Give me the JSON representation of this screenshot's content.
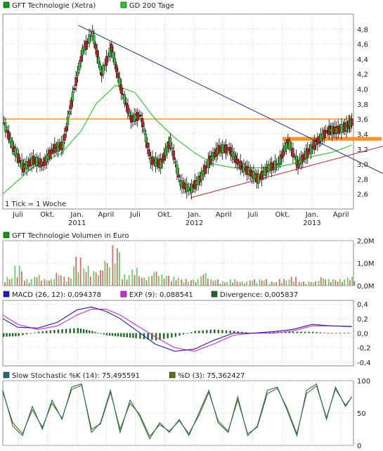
{
  "chart_data": [
    {
      "type": "candlestick",
      "legend": [
        {
          "label": "GFT Technologie (Xetra)",
          "color": "#00a000"
        },
        {
          "label": "GD 200 Tage",
          "color": "#22cc22"
        }
      ],
      "note": "1 Tick = 1 Woche",
      "xlim": [
        "2010-05-15",
        "2013-05-10"
      ],
      "ylim": [
        2.4,
        5.0
      ],
      "y_ticks": [
        "2,6",
        "2,8",
        "3,0",
        "3,2",
        "3,4",
        "3,6",
        "3,8",
        "4,0",
        "4,2",
        "4,4",
        "4,6",
        "4,8"
      ],
      "x_ticks": [
        "Juli",
        "Okt.",
        "Jan.",
        "April",
        "Juli",
        "Okt.",
        "Jan.",
        "April",
        "Juli",
        "Okt.",
        "Jan.",
        "April"
      ],
      "year_labels": [
        "2011",
        "2012",
        "2013"
      ],
      "price": {
        "dates": [
          "2010-05-15",
          "2010-06-15",
          "2010-07-15",
          "2010-08-15",
          "2010-09-15",
          "2010-10-15",
          "2010-11-15",
          "2010-12-15",
          "2011-01-15",
          "2011-02-15",
          "2011-03-15",
          "2011-04-15",
          "2011-05-15",
          "2011-06-15",
          "2011-07-15",
          "2011-08-15",
          "2011-09-15",
          "2011-10-15",
          "2011-11-15",
          "2011-12-15",
          "2012-01-15",
          "2012-02-15",
          "2012-03-15",
          "2012-04-15",
          "2012-05-15",
          "2012-06-15",
          "2012-07-15",
          "2012-08-15",
          "2012-09-15",
          "2012-10-15",
          "2012-11-15",
          "2012-12-15",
          "2013-01-15",
          "2013-02-15",
          "2013-03-15",
          "2013-04-15",
          "2013-05-05"
        ],
        "values": [
          3.55,
          3.2,
          2.95,
          3.05,
          3.0,
          3.2,
          3.25,
          3.9,
          4.5,
          4.75,
          4.2,
          4.55,
          4.0,
          3.6,
          3.65,
          3.05,
          3.0,
          3.3,
          2.75,
          2.65,
          2.8,
          3.05,
          3.2,
          3.2,
          3.0,
          2.9,
          2.8,
          2.95,
          3.0,
          3.3,
          3.0,
          3.15,
          3.3,
          3.45,
          3.45,
          3.5,
          3.57
        ]
      },
      "gd200": {
        "dates": [
          "2010-05-15",
          "2010-08-15",
          "2010-11-15",
          "2011-01-15",
          "2011-03-01",
          "2011-05-01",
          "2011-07-01",
          "2011-09-01",
          "2011-11-01",
          "2012-01-01",
          "2012-03-01",
          "2012-05-01",
          "2012-07-01",
          "2012-09-01",
          "2012-11-01",
          "2013-01-01",
          "2013-03-01",
          "2013-05-05"
        ],
        "values": [
          2.6,
          2.95,
          3.15,
          3.45,
          3.8,
          4.05,
          3.95,
          3.6,
          3.35,
          3.15,
          3.0,
          2.95,
          2.95,
          2.95,
          3.0,
          3.1,
          3.15,
          3.25
        ]
      },
      "trend_lines": [
        {
          "color": "#2030a0",
          "from": [
            "2011-01-05",
            4.85
          ],
          "to": [
            "2013-05-25",
            2.85
          ]
        },
        {
          "color": "#cc2020",
          "from": [
            "2011-12-20",
            2.55
          ],
          "to": [
            "2013-05-25",
            3.25
          ]
        }
      ],
      "horizontal_line": {
        "value": 3.6,
        "color": "#ff7f00"
      },
      "marked_zone": {
        "from_date": "2012-10-01",
        "low": 3.31,
        "high": 3.36,
        "color": "#ff8000"
      }
    },
    {
      "type": "bar",
      "legend": [
        {
          "label": "GFT Technologie Volumen in Euro",
          "color": "#00a000"
        }
      ],
      "y_ticks": [
        "0,0M",
        "1,0M",
        "2,0M"
      ],
      "ylim": [
        0,
        2.0
      ],
      "x": [
        "2010-05-20",
        "2010-06-20",
        "2010-07-20",
        "2010-08-20",
        "2010-09-20",
        "2010-10-20",
        "2010-11-20",
        "2010-12-20",
        "2011-01-20",
        "2011-02-20",
        "2011-03-20",
        "2011-04-20",
        "2011-05-20",
        "2011-06-20",
        "2011-07-20",
        "2011-08-20",
        "2011-09-20",
        "2011-10-20",
        "2011-11-20",
        "2011-12-20",
        "2012-01-20",
        "2012-02-20",
        "2012-03-20",
        "2012-04-20",
        "2012-05-20",
        "2012-06-20",
        "2012-07-20",
        "2012-08-20",
        "2012-09-20",
        "2012-10-20",
        "2012-11-20",
        "2012-12-20",
        "2013-01-20",
        "2013-02-20",
        "2013-03-20",
        "2013-04-20"
      ],
      "values": [
        0.4,
        0.9,
        0.3,
        0.5,
        0.3,
        0.6,
        0.4,
        1.3,
        0.9,
        0.7,
        1.2,
        1.8,
        0.5,
        0.8,
        0.4,
        0.7,
        0.5,
        0.4,
        0.3,
        0.3,
        0.6,
        0.3,
        0.2,
        0.3,
        0.2,
        0.3,
        0.3,
        0.2,
        0.3,
        0.4,
        0.2,
        0.2,
        0.4,
        0.3,
        0.3,
        0.4
      ],
      "rising": [
        false,
        true,
        false,
        true,
        false,
        true,
        false,
        true,
        true,
        true,
        false,
        false,
        false,
        true,
        false,
        false,
        true,
        false,
        false,
        false,
        true,
        true,
        false,
        true,
        false,
        false,
        true,
        true,
        false,
        true,
        false,
        true,
        true,
        true,
        false,
        true
      ]
    },
    {
      "type": "line",
      "legend": [
        {
          "label": "MACD (26, 12): 0,094378",
          "color": "#1a1acc"
        },
        {
          "label": "EXP (9): 0,088541",
          "color": "#e020e0"
        },
        {
          "label": "Divergence: 0,005837",
          "color": "#1a6e1a"
        }
      ],
      "y_ticks": [
        "-0,4",
        "-0,2",
        "0,0",
        "0,2",
        "0,4"
      ],
      "ylim": [
        -0.45,
        0.45
      ],
      "series": [
        {
          "dates": [
            "2010-05-15",
            "2010-07-01",
            "2010-09-01",
            "2010-11-01",
            "2011-01-01",
            "2011-02-15",
            "2011-04-01",
            "2011-05-15",
            "2011-07-01",
            "2011-09-01",
            "2011-11-01",
            "2012-01-01",
            "2012-03-01",
            "2012-05-01",
            "2012-07-01",
            "2012-09-01",
            "2012-11-01",
            "2013-01-01",
            "2013-03-01",
            "2013-05-05"
          ],
          "values": [
            0.2,
            0.08,
            0.07,
            0.15,
            0.32,
            0.36,
            0.3,
            0.2,
            0.05,
            -0.15,
            -0.25,
            -0.22,
            -0.1,
            0.0,
            0.0,
            0.02,
            0.05,
            0.12,
            0.1,
            0.094
          ]
        },
        {
          "dates": [
            "2010-05-15",
            "2010-07-01",
            "2010-09-01",
            "2010-11-01",
            "2011-01-01",
            "2011-02-15",
            "2011-04-01",
            "2011-05-15",
            "2011-07-01",
            "2011-09-01",
            "2011-11-01",
            "2012-01-01",
            "2012-03-01",
            "2012-05-01",
            "2012-07-01",
            "2012-09-01",
            "2012-11-01",
            "2013-01-01",
            "2013-03-01",
            "2013-05-05"
          ],
          "values": [
            0.25,
            0.12,
            0.05,
            0.1,
            0.25,
            0.33,
            0.33,
            0.25,
            0.12,
            -0.05,
            -0.2,
            -0.25,
            -0.15,
            -0.03,
            0.0,
            0.0,
            0.03,
            0.1,
            0.1,
            0.089
          ]
        }
      ],
      "divergence": {
        "dates": [
          "2010-05-15",
          "2010-07-01",
          "2010-09-01",
          "2010-11-01",
          "2011-01-01",
          "2011-02-15",
          "2011-04-01",
          "2011-05-15",
          "2011-07-01",
          "2011-09-01",
          "2011-11-01",
          "2012-01-01",
          "2012-03-01",
          "2012-05-01",
          "2012-07-01",
          "2012-09-01",
          "2012-11-01",
          "2013-01-01",
          "2013-03-01",
          "2013-05-05"
        ],
        "values": [
          -0.05,
          -0.04,
          0.02,
          0.05,
          0.07,
          0.03,
          -0.03,
          -0.05,
          -0.07,
          -0.1,
          -0.05,
          0.03,
          0.05,
          0.03,
          0.0,
          0.02,
          0.02,
          0.02,
          0.0,
          0.006
        ]
      }
    },
    {
      "type": "line",
      "legend": [
        {
          "label": "Slow Stochastic %K (14): 75,495591",
          "color": "#1a6e6e"
        },
        {
          "label": "%D (3): 75,362427",
          "color": "#6b6b00"
        }
      ],
      "y_ticks": [
        "0",
        "50",
        "100"
      ],
      "ylim": [
        0,
        100
      ],
      "series": [
        {
          "dates": [
            "2010-05-15",
            "2010-06-15",
            "2010-07-15",
            "2010-08-15",
            "2010-09-15",
            "2010-10-15",
            "2010-11-15",
            "2010-12-15",
            "2011-01-15",
            "2011-02-15",
            "2011-03-15",
            "2011-04-15",
            "2011-05-15",
            "2011-06-15",
            "2011-07-15",
            "2011-08-15",
            "2011-09-15",
            "2011-10-15",
            "2011-11-15",
            "2011-12-15",
            "2012-01-15",
            "2012-02-15",
            "2012-03-15",
            "2012-04-15",
            "2012-05-15",
            "2012-06-15",
            "2012-07-15",
            "2012-08-15",
            "2012-09-15",
            "2012-10-15",
            "2012-11-15",
            "2012-12-15",
            "2013-01-15",
            "2013-02-15",
            "2013-03-15",
            "2013-04-15",
            "2013-05-05"
          ],
          "values": [
            85,
            30,
            15,
            60,
            25,
            70,
            40,
            90,
            95,
            20,
            35,
            85,
            20,
            70,
            45,
            10,
            35,
            20,
            40,
            15,
            50,
            85,
            35,
            20,
            75,
            15,
            30,
            85,
            90,
            55,
            15,
            85,
            95,
            40,
            90,
            60,
            75
          ]
        },
        {
          "dates": [
            "2010-05-15",
            "2010-06-15",
            "2010-07-15",
            "2010-08-15",
            "2010-09-15",
            "2010-10-15",
            "2010-11-15",
            "2010-12-15",
            "2011-01-15",
            "2011-02-15",
            "2011-03-15",
            "2011-04-15",
            "2011-05-15",
            "2011-06-15",
            "2011-07-15",
            "2011-08-15",
            "2011-09-15",
            "2011-10-15",
            "2011-11-15",
            "2011-12-15",
            "2012-01-15",
            "2012-02-15",
            "2012-03-15",
            "2012-04-15",
            "2012-05-15",
            "2012-06-15",
            "2012-07-15",
            "2012-08-15",
            "2012-09-15",
            "2012-10-15",
            "2012-11-15",
            "2012-12-15",
            "2013-01-15",
            "2013-02-15",
            "2013-03-15",
            "2013-04-15",
            "2013-05-05"
          ],
          "values": [
            82,
            35,
            18,
            55,
            28,
            65,
            42,
            86,
            93,
            25,
            33,
            82,
            25,
            65,
            48,
            14,
            32,
            22,
            38,
            18,
            46,
            82,
            38,
            22,
            70,
            18,
            28,
            80,
            88,
            58,
            18,
            80,
            92,
            43,
            87,
            62,
            75
          ]
        }
      ]
    }
  ]
}
